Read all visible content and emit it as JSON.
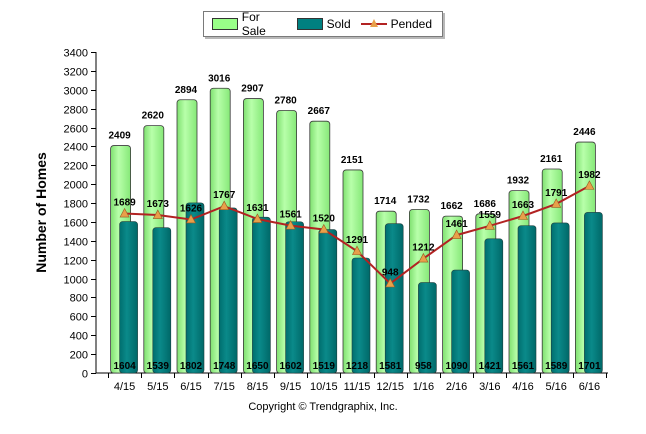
{
  "chart_data": {
    "type": "bar",
    "categories": [
      "4/15",
      "5/15",
      "6/15",
      "7/15",
      "8/15",
      "9/15",
      "10/15",
      "11/15",
      "12/15",
      "1/16",
      "2/16",
      "3/16",
      "4/16",
      "5/16",
      "6/16"
    ],
    "series": [
      {
        "name": "For Sale",
        "type": "bar",
        "color": "#99ff88",
        "values": [
          2409,
          2620,
          2894,
          3016,
          2907,
          2780,
          2667,
          2151,
          1714,
          1732,
          1662,
          1686,
          1932,
          2161,
          2446
        ]
      },
      {
        "name": "Sold",
        "type": "bar",
        "color": "#008080",
        "values": [
          1604,
          1539,
          1802,
          1748,
          1650,
          1602,
          1519,
          1218,
          1581,
          958,
          1090,
          1421,
          1561,
          1589,
          1701
        ]
      },
      {
        "name": "Pended",
        "type": "line",
        "color": "#b22222",
        "marker_color": "#e8a04a",
        "values": [
          1689,
          1673,
          1626,
          1767,
          1631,
          1561,
          1520,
          1291,
          948,
          1212,
          1461,
          1559,
          1663,
          1791,
          1982
        ]
      }
    ],
    "ylabel": "Number of Homes",
    "xlabel": "",
    "ylim": [
      0,
      3400
    ],
    "yticks": [
      0,
      200,
      400,
      600,
      800,
      1000,
      1200,
      1400,
      1600,
      1800,
      2000,
      2200,
      2400,
      2600,
      2800,
      3000,
      3200,
      3400
    ],
    "grid": false,
    "legend_position": "top-center"
  },
  "legend": {
    "for_sale": "For Sale",
    "sold": "Sold",
    "pended": "Pended"
  },
  "footer": {
    "copyright": "Copyright © Trendgraphix, Inc."
  }
}
